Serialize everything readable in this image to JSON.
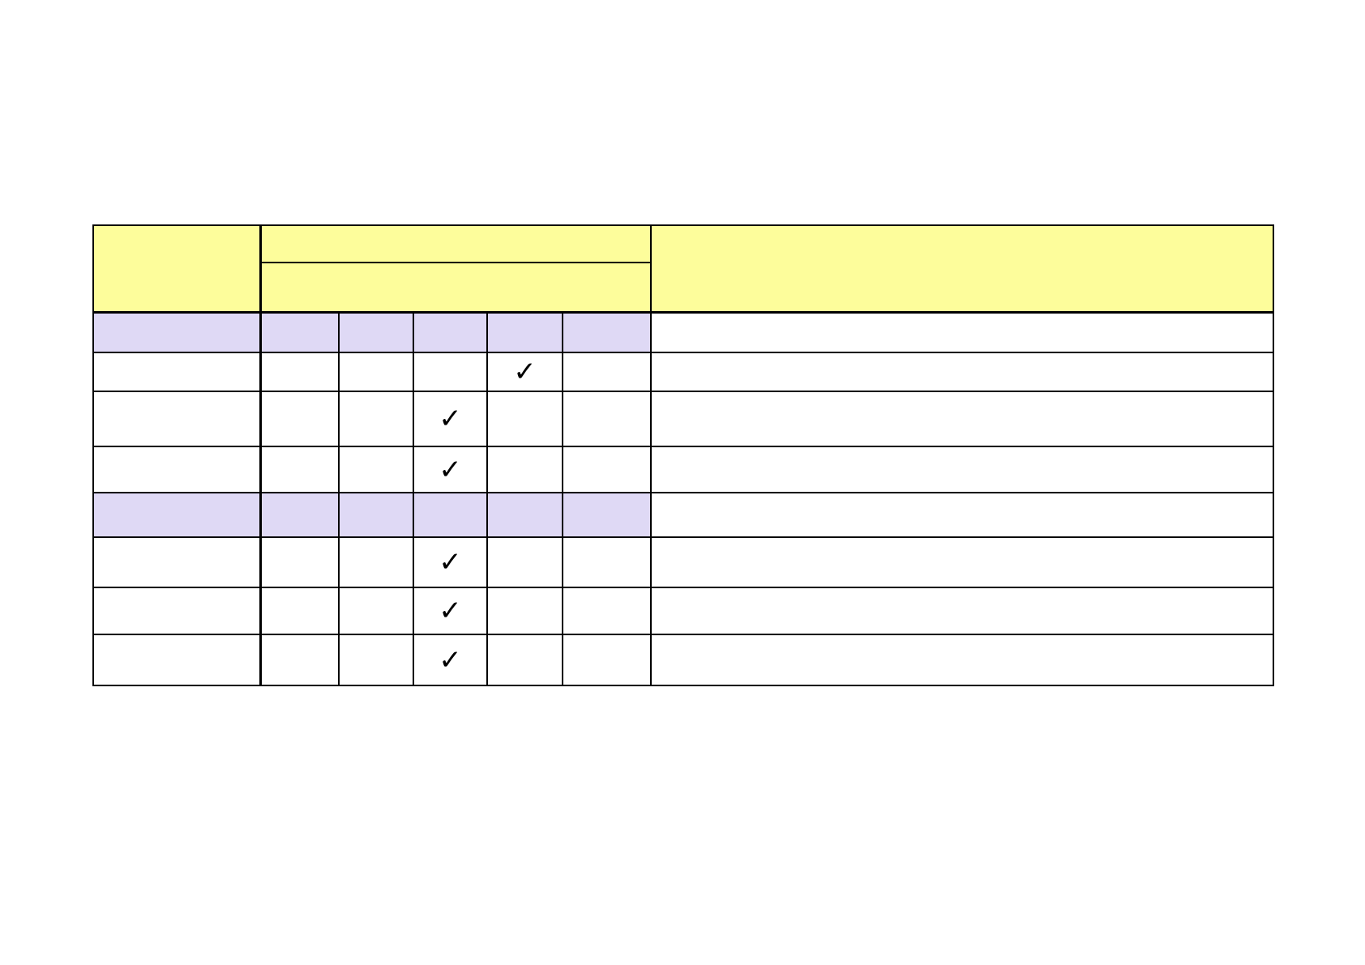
{
  "colors": {
    "header_fill": "#fdfd9b",
    "section_fill": "#dfd9f5",
    "border": "#000000"
  },
  "table": {
    "icon": "check-mark-icon",
    "check_glyph": "✓",
    "rows": [
      {
        "type": "section",
        "checks": [
          false,
          false,
          false,
          false,
          false
        ]
      },
      {
        "type": "item",
        "checks": [
          false,
          false,
          false,
          true,
          false
        ]
      },
      {
        "type": "item",
        "checks": [
          false,
          false,
          true,
          false,
          false
        ]
      },
      {
        "type": "item",
        "checks": [
          false,
          false,
          true,
          false,
          false
        ]
      },
      {
        "type": "section",
        "checks": [
          false,
          false,
          false,
          false,
          false
        ]
      },
      {
        "type": "item",
        "checks": [
          false,
          false,
          true,
          false,
          false
        ]
      },
      {
        "type": "item",
        "checks": [
          false,
          false,
          true,
          false,
          false
        ]
      },
      {
        "type": "item",
        "checks": [
          false,
          false,
          true,
          false,
          false
        ]
      }
    ]
  }
}
